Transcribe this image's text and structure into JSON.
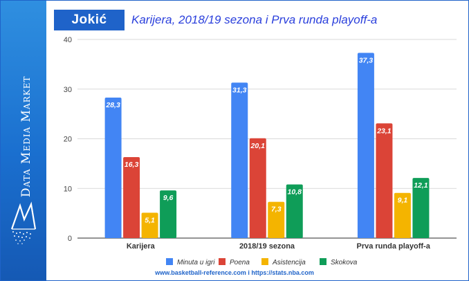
{
  "header": {
    "name": "Jokić",
    "title": "Karijera, 2018/19 sezona i Prva runda playoff-a"
  },
  "brand": {
    "text": "Data Media Market",
    "logo_icon": "data-media-market-logo-icon",
    "color": "#1f63c9"
  },
  "source": "www.basketball-reference.com i https://stats.nba.com",
  "chart_data": {
    "type": "bar",
    "categories": [
      "Karijera",
      "2018/19 sezona",
      "Prva runda playoff-a"
    ],
    "series": [
      {
        "name": "Minuta u igri",
        "color": "#4285f4",
        "values": [
          28.3,
          31.3,
          37.3
        ],
        "labels": [
          "28,3",
          "31,3",
          "37,3"
        ]
      },
      {
        "name": "Poena",
        "color": "#db4437",
        "values": [
          16.3,
          20.1,
          23.1
        ],
        "labels": [
          "16,3",
          "20,1",
          "23,1"
        ]
      },
      {
        "name": "Asistencija",
        "color": "#f4b400",
        "values": [
          5.1,
          7.3,
          9.1
        ],
        "labels": [
          "5,1",
          "7,3",
          "9,1"
        ]
      },
      {
        "name": "Skokova",
        "color": "#0f9d58",
        "values": [
          9.6,
          10.8,
          12.1
        ],
        "labels": [
          "9,6",
          "10,8",
          "12,1"
        ]
      }
    ],
    "ylim": [
      0,
      40
    ],
    "yticks": [
      "0",
      "10",
      "20",
      "30",
      "40"
    ],
    "grid": true,
    "legend": "bottom"
  }
}
